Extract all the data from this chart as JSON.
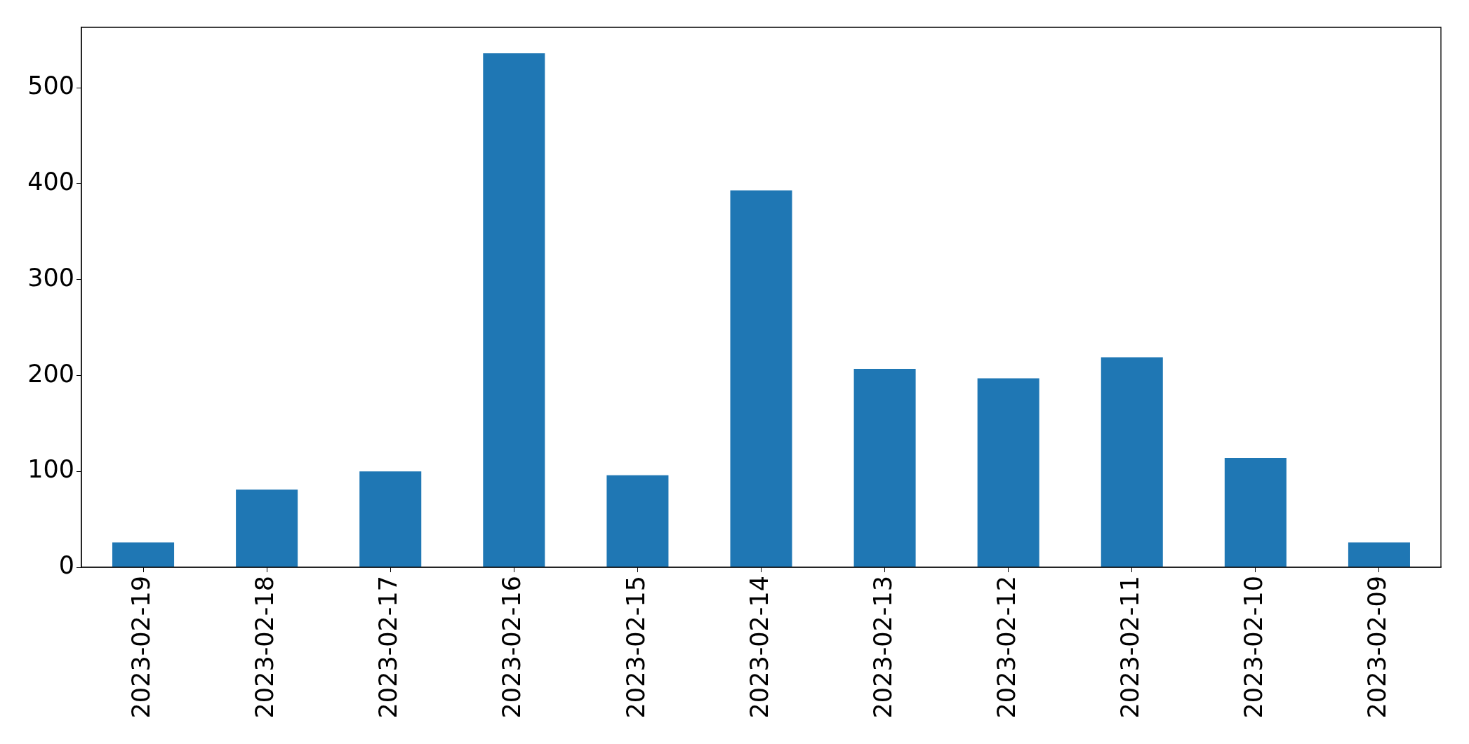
{
  "chart_data": {
    "type": "bar",
    "categories": [
      "2023-02-19",
      "2023-02-18",
      "2023-02-17",
      "2023-02-16",
      "2023-02-15",
      "2023-02-14",
      "2023-02-13",
      "2023-02-12",
      "2023-02-11",
      "2023-02-10",
      "2023-02-09"
    ],
    "values": [
      26,
      81,
      100,
      536,
      96,
      393,
      207,
      197,
      219,
      114,
      26
    ],
    "color": "#1f77b4",
    "ylim": [
      0,
      563
    ],
    "yticks": [
      0,
      100,
      200,
      300,
      400,
      500
    ]
  }
}
